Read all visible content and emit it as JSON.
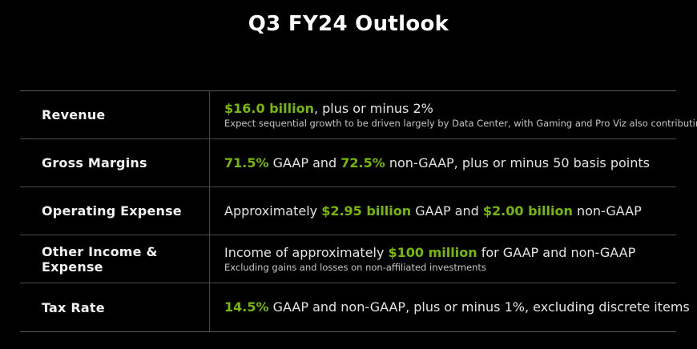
{
  "title": "Q3 FY24 Outlook",
  "colors": {
    "background": "#000000",
    "accent_green": "#76b900",
    "text_primary": "#e4e4e4",
    "text_note": "#c6c6c6",
    "divider": "#4d4d4d"
  },
  "table": {
    "rows": [
      {
        "label": "Revenue",
        "value_segments": [
          {
            "text": "$16.0 billion",
            "highlight": true
          },
          {
            "text": ", plus or minus 2%",
            "highlight": false
          }
        ],
        "note": "Expect sequential growth to be driven largely by Data Center, with Gaming and Pro Viz also contributing"
      },
      {
        "label": "Gross Margins",
        "value_segments": [
          {
            "text": "71.5%",
            "highlight": true
          },
          {
            "text": " GAAP and ",
            "highlight": false
          },
          {
            "text": "72.5%",
            "highlight": true
          },
          {
            "text": " non-GAAP, plus or minus 50 basis points",
            "highlight": false
          }
        ],
        "note": ""
      },
      {
        "label": "Operating Expense",
        "value_segments": [
          {
            "text": "Approximately ",
            "highlight": false
          },
          {
            "text": "$2.95 billion",
            "highlight": true
          },
          {
            "text": " GAAP and ",
            "highlight": false
          },
          {
            "text": "$2.00 billion",
            "highlight": true
          },
          {
            "text": " non-GAAP",
            "highlight": false
          }
        ],
        "note": ""
      },
      {
        "label": "Other Income & Expense",
        "value_segments": [
          {
            "text": "Income of approximately ",
            "highlight": false
          },
          {
            "text": "$100 million",
            "highlight": true
          },
          {
            "text": " for GAAP and non-GAAP",
            "highlight": false
          }
        ],
        "note": "Excluding gains and losses on non-affiliated investments"
      },
      {
        "label": "Tax Rate",
        "value_segments": [
          {
            "text": "14.5%",
            "highlight": true
          },
          {
            "text": " GAAP and non-GAAP, plus or minus 1%, excluding discrete items",
            "highlight": false
          }
        ],
        "note": ""
      }
    ]
  }
}
